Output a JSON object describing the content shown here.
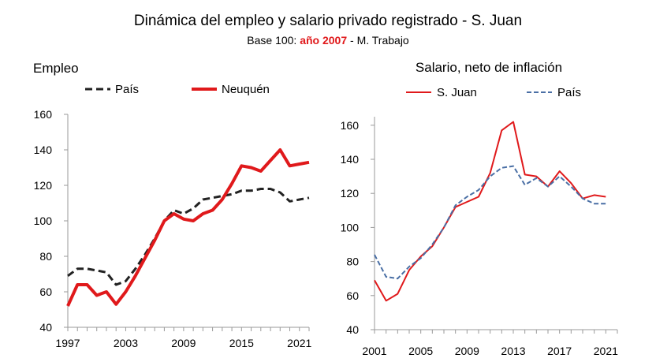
{
  "title": "Dinámica del empleo y salario privado registrado - S. Juan",
  "subtitle": {
    "prefix": "Base 100: ",
    "highlight": "año 2007",
    "suffix": " - M. Trabajo"
  },
  "colors": {
    "red": "#e0191b",
    "dark": "#222222",
    "blue": "#4a6fa5",
    "axis": "#9a9a9a"
  },
  "chart_data": [
    {
      "type": "line",
      "title": "Empleo",
      "xlabel": "",
      "ylabel": "",
      "xlim": [
        1997,
        2022
      ],
      "ylim": [
        40,
        160
      ],
      "yticks": [
        40,
        60,
        80,
        100,
        120,
        140,
        160
      ],
      "xticks": [
        1997,
        2003,
        2009,
        2015,
        2021
      ],
      "grid": false,
      "legend": "top",
      "x": [
        1997,
        1998,
        1999,
        2000,
        2001,
        2002,
        2003,
        2004,
        2005,
        2006,
        2007,
        2008,
        2009,
        2010,
        2011,
        2012,
        2013,
        2014,
        2015,
        2016,
        2017,
        2018,
        2019,
        2020,
        2021,
        2022
      ],
      "series": [
        {
          "name": "País",
          "style": "dashed",
          "color": "#222222",
          "values": [
            69,
            73,
            73,
            72,
            71,
            64,
            66,
            73,
            81,
            90,
            100,
            106,
            104,
            107,
            112,
            113,
            114,
            115,
            117,
            117,
            118,
            118,
            116,
            111,
            112,
            113
          ]
        },
        {
          "name": "Neuquén",
          "style": "solid",
          "color": "#e0191b",
          "values": [
            52,
            64,
            64,
            58,
            60,
            53,
            60,
            69,
            79,
            89,
            100,
            104,
            101,
            100,
            104,
            106,
            112,
            121,
            131,
            130,
            128,
            134,
            140,
            131,
            132,
            133
          ]
        }
      ]
    },
    {
      "type": "line",
      "title": "Salario, neto de inflación",
      "xlabel": "",
      "ylabel": "",
      "xlim": [
        2001,
        2022
      ],
      "ylim": [
        40,
        165
      ],
      "yticks": [
        40,
        60,
        80,
        100,
        120,
        140,
        160
      ],
      "xticks": [
        2001,
        2005,
        2009,
        2013,
        2017,
        2021
      ],
      "grid": false,
      "legend": "top",
      "x": [
        2001,
        2002,
        2003,
        2004,
        2005,
        2006,
        2007,
        2008,
        2009,
        2010,
        2011,
        2012,
        2013,
        2014,
        2015,
        2016,
        2017,
        2018,
        2019,
        2020,
        2021
      ],
      "series": [
        {
          "name": "S. Juan",
          "style": "solid",
          "color": "#e0191b",
          "values": [
            69,
            57,
            61,
            75,
            83,
            89,
            100,
            112,
            115,
            118,
            132,
            157,
            162,
            131,
            130,
            124,
            133,
            126,
            117,
            119,
            118
          ]
        },
        {
          "name": "País",
          "style": "dashed",
          "color": "#4a6fa5",
          "values": [
            84,
            71,
            70,
            77,
            82,
            90,
            100,
            113,
            118,
            122,
            130,
            135,
            136,
            125,
            129,
            124,
            130,
            124,
            117,
            114,
            114
          ]
        }
      ]
    }
  ]
}
